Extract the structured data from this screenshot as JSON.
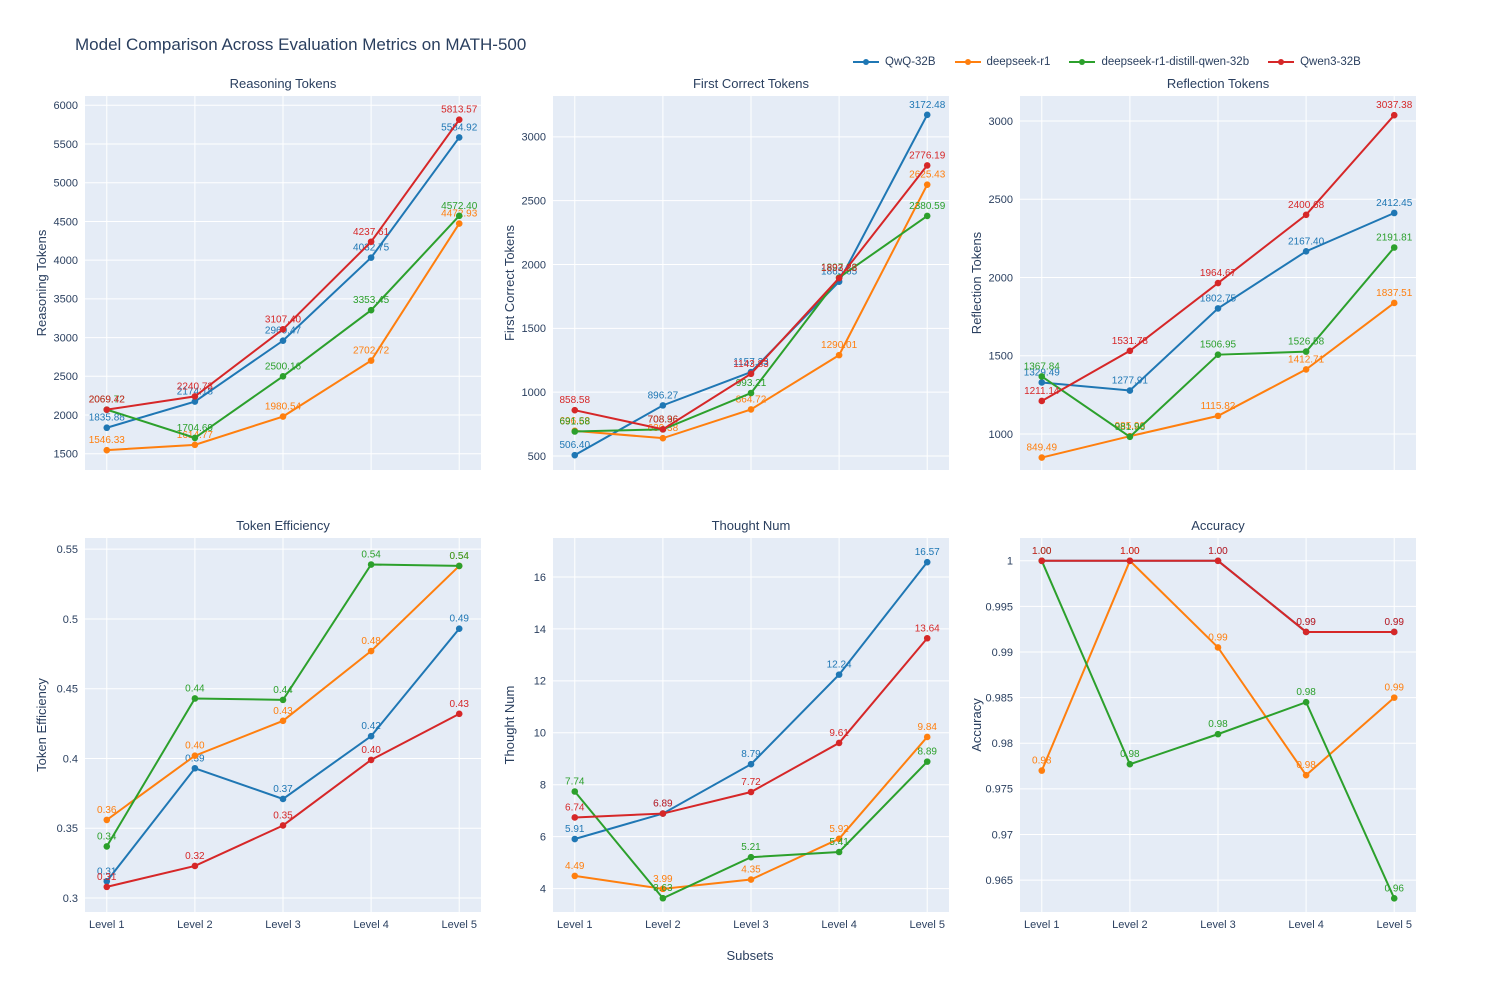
{
  "title": "Model Comparison Across Evaluation Metrics on MATH-500",
  "xlabel": "Subsets",
  "categories": [
    "Level 1",
    "Level 2",
    "Level 3",
    "Level 4",
    "Level 5"
  ],
  "legend": [
    {
      "label": "QwQ-32B",
      "color": "#1f77b4"
    },
    {
      "label": "deepseek-r1",
      "color": "#ff7f0e"
    },
    {
      "label": "deepseek-r1-distill-qwen-32b",
      "color": "#2ca02c"
    },
    {
      "label": "Qwen3-32B",
      "color": "#d62728"
    }
  ],
  "style": {
    "panel_bg": "#e5ecf6",
    "grid": "#ffffff",
    "text": "#2a3f5f"
  },
  "chart_data": [
    {
      "type": "line",
      "title": "Reasoning Tokens",
      "ylabel": "Reasoning Tokens",
      "ymin": 1290,
      "ymax": 6120,
      "yticks": [
        1500,
        2000,
        2500,
        3000,
        3500,
        4000,
        4500,
        5000,
        5500,
        6000
      ],
      "ytick_labels": [
        "1500",
        "2000",
        "2500",
        "3000",
        "3500",
        "4000",
        "4500",
        "5000",
        "5500",
        "6000"
      ],
      "series": [
        {
          "name": "QwQ-32B",
          "color": "#1f77b4",
          "values": [
            1835.88,
            2174.18,
            2960.47,
            4032.75,
            5584.92
          ],
          "labels": [
            "1835.88",
            "2174.18",
            "2960.47",
            "4032.75",
            "5584.92"
          ]
        },
        {
          "name": "deepseek-r1",
          "color": "#ff7f0e",
          "values": [
            1546.33,
            1614.77,
            1980.54,
            2702.72,
            4472.93
          ],
          "labels": [
            "1546.33",
            "1614.77",
            "1980.54",
            "2702.72",
            "4472.93"
          ]
        },
        {
          "name": "deepseek-r1-distill-qwen-32b",
          "color": "#2ca02c",
          "values": [
            2069.72,
            1704.69,
            2500.16,
            3353.45,
            4572.4
          ],
          "labels": [
            "2069.72",
            "1704.69",
            "2500.16",
            "3353.45",
            "4572.40"
          ]
        },
        {
          "name": "Qwen3-32B",
          "color": "#d62728",
          "values": [
            2069.42,
            2240.73,
            3107.4,
            4237.61,
            5813.57
          ],
          "labels": [
            "2069.42",
            "2240.73",
            "3107.40",
            "4237.61",
            "5813.57"
          ]
        }
      ]
    },
    {
      "type": "line",
      "title": "First Correct Tokens",
      "ylabel": "First Correct Tokens",
      "ymin": 390,
      "ymax": 3320,
      "yticks": [
        500,
        1000,
        1500,
        2000,
        2500,
        3000
      ],
      "ytick_labels": [
        "500",
        "1000",
        "1500",
        "2000",
        "2500",
        "3000"
      ],
      "series": [
        {
          "name": "QwQ-32B",
          "color": "#1f77b4",
          "values": [
            506.4,
            896.27,
            1157.33,
            1865.65,
            3172.48
          ],
          "labels": [
            "506.40",
            "896.27",
            "1157.33",
            "1865.65",
            "3172.48"
          ]
        },
        {
          "name": "deepseek-r1",
          "color": "#ff7f0e",
          "values": [
            696.68,
            639.38,
            864.72,
            1290.01,
            2625.43
          ],
          "labels": [
            "696.68",
            "639.38",
            "864.72",
            "1290.01",
            "2625.43"
          ]
        },
        {
          "name": "deepseek-r1-distill-qwen-32b",
          "color": "#2ca02c",
          "values": [
            691.58,
            708.36,
            993.21,
            1897.23,
            2380.59
          ],
          "labels": [
            "691.58",
            "708.36",
            "993.21",
            "1897.23",
            "2380.59"
          ]
        },
        {
          "name": "Qwen3-32B",
          "color": "#d62728",
          "values": [
            858.58,
            708.96,
            1143.83,
            1893.28,
            2776.19
          ],
          "labels": [
            "858.58",
            "708.96",
            "1143.83",
            "1893.28",
            "2776.19"
          ]
        }
      ]
    },
    {
      "type": "line",
      "title": "Reflection Tokens",
      "ylabel": "Reflection Tokens",
      "ymin": 770,
      "ymax": 3160,
      "yticks": [
        1000,
        1500,
        2000,
        2500,
        3000
      ],
      "ytick_labels": [
        "1000",
        "1500",
        "2000",
        "2500",
        "3000"
      ],
      "series": [
        {
          "name": "QwQ-32B",
          "color": "#1f77b4",
          "values": [
            1329.49,
            1277.91,
            1802.75,
            2167.4,
            2412.45
          ],
          "labels": [
            "1329.49",
            "1277.91",
            "1802.75",
            "2167.40",
            "2412.45"
          ]
        },
        {
          "name": "deepseek-r1",
          "color": "#ff7f0e",
          "values": [
            849.49,
            985.9,
            1115.82,
            1412.71,
            1837.51
          ],
          "labels": [
            "849.49",
            "985.90",
            "1115.82",
            "1412.71",
            "1837.51"
          ]
        },
        {
          "name": "deepseek-r1-distill-qwen-32b",
          "color": "#2ca02c",
          "values": [
            1367.84,
            981.96,
            1506.95,
            1526.58,
            2191.81
          ],
          "labels": [
            "1367.84",
            "981.96",
            "1506.95",
            "1526.58",
            "2191.81"
          ]
        },
        {
          "name": "Qwen3-32B",
          "color": "#d62728",
          "values": [
            1211.14,
            1531.78,
            1964.67,
            2400.68,
            3037.38
          ],
          "labels": [
            "1211.14",
            "1531.78",
            "1964.67",
            "2400.68",
            "3037.38"
          ]
        }
      ]
    },
    {
      "type": "line",
      "title": "Token Efficiency",
      "ylabel": "Token Efficiency",
      "ymin": 0.29,
      "ymax": 0.558,
      "yticks": [
        0.3,
        0.35,
        0.4,
        0.45,
        0.5,
        0.55
      ],
      "ytick_labels": [
        "0.3",
        "0.35",
        "0.4",
        "0.45",
        "0.5",
        "0.55"
      ],
      "series": [
        {
          "name": "QwQ-32B",
          "color": "#1f77b4",
          "values": [
            0.312,
            0.393,
            0.371,
            0.416,
            0.493
          ],
          "labels": [
            "0.31",
            "0.39",
            "0.37",
            "0.42",
            "0.49"
          ]
        },
        {
          "name": "deepseek-r1",
          "color": "#ff7f0e",
          "values": [
            0.356,
            0.402,
            0.427,
            0.477,
            0.538
          ],
          "labels": [
            "0.36",
            "0.40",
            "0.43",
            "0.48",
            "0.54"
          ]
        },
        {
          "name": "deepseek-r1-distill-qwen-32b",
          "color": "#2ca02c",
          "values": [
            0.337,
            0.443,
            0.442,
            0.539,
            0.538
          ],
          "labels": [
            "0.34",
            "0.44",
            "0.44",
            "0.54",
            "0.54"
          ]
        },
        {
          "name": "Qwen3-32B",
          "color": "#d62728",
          "values": [
            0.308,
            0.323,
            0.352,
            0.399,
            0.432
          ],
          "labels": [
            "0.31",
            "0.32",
            "0.35",
            "0.40",
            "0.43"
          ]
        }
      ]
    },
    {
      "type": "line",
      "title": "Thought Num",
      "ylabel": "Thought Num",
      "ymin": 3.1,
      "ymax": 17.5,
      "yticks": [
        4,
        6,
        8,
        10,
        12,
        14,
        16
      ],
      "ytick_labels": [
        "4",
        "6",
        "8",
        "10",
        "12",
        "14",
        "16"
      ],
      "series": [
        {
          "name": "QwQ-32B",
          "color": "#1f77b4",
          "values": [
            5.91,
            6.89,
            8.79,
            12.24,
            16.57
          ],
          "labels": [
            "5.91",
            "6.89",
            "8.79",
            "12.24",
            "16.57"
          ]
        },
        {
          "name": "deepseek-r1",
          "color": "#ff7f0e",
          "values": [
            4.49,
            3.99,
            4.35,
            5.92,
            9.84
          ],
          "labels": [
            "4.49",
            "3.99",
            "4.35",
            "5.92",
            "9.84"
          ]
        },
        {
          "name": "deepseek-r1-distill-qwen-32b",
          "color": "#2ca02c",
          "values": [
            7.74,
            3.63,
            5.21,
            5.41,
            8.89
          ],
          "labels": [
            "7.74",
            "3.63",
            "5.21",
            "5.41",
            "8.89"
          ]
        },
        {
          "name": "Qwen3-32B",
          "color": "#d62728",
          "values": [
            6.74,
            6.89,
            7.72,
            9.61,
            13.64
          ],
          "labels": [
            "6.74",
            "6.89",
            "7.72",
            "9.61",
            "13.64"
          ]
        }
      ]
    },
    {
      "type": "line",
      "title": "Accuracy",
      "ylabel": "Accuracy",
      "ymin": 0.9615,
      "ymax": 1.0025,
      "yticks": [
        0.965,
        0.97,
        0.975,
        0.98,
        0.985,
        0.99,
        0.995,
        1
      ],
      "ytick_labels": [
        "0.965",
        "0.97",
        "0.975",
        "0.98",
        "0.985",
        "0.99",
        "0.995",
        "1"
      ],
      "series": [
        {
          "name": "QwQ-32B",
          "color": "#1f77b4",
          "values": [
            1.0,
            1.0,
            1.0,
            0.9922,
            0.9922
          ],
          "labels": [
            "1.00",
            "1.00",
            "1.00",
            "0.99",
            "0.99"
          ]
        },
        {
          "name": "deepseek-r1",
          "color": "#ff7f0e",
          "values": [
            0.977,
            1.0,
            0.9905,
            0.9765,
            0.985
          ],
          "labels": [
            "0.98",
            "1.00",
            "0.99",
            "0.98",
            "0.99"
          ]
        },
        {
          "name": "deepseek-r1-distill-qwen-32b",
          "color": "#2ca02c",
          "values": [
            1.0,
            0.9777,
            0.981,
            0.9845,
            0.963
          ],
          "labels": [
            "1.00",
            "0.98",
            "0.98",
            "0.98",
            "0.96"
          ]
        },
        {
          "name": "Qwen3-32B",
          "color": "#d62728",
          "values": [
            1.0,
            1.0,
            1.0,
            0.9922,
            0.9922
          ],
          "labels": [
            "1.00",
            "1.00",
            "1.00",
            "0.99",
            "0.99"
          ]
        }
      ]
    }
  ]
}
